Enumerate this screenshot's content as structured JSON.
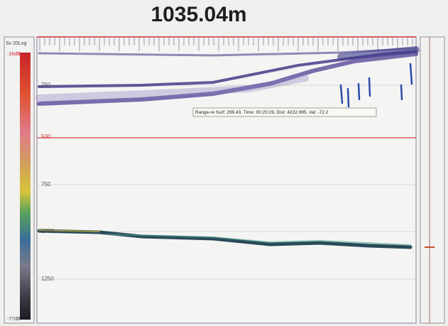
{
  "header": {
    "title": "1035.04m"
  },
  "colorbar": {
    "unit_label": "Sv 20Log",
    "top_label": "-16dB",
    "bottom_label": "-77dB"
  },
  "depth_labels": [
    "250",
    "500",
    "750",
    "1000",
    "1250"
  ],
  "tooltip": {
    "text": "Range-re Surf: 299.43, Time: 00:20:29, Dist: 4222.995, Val: -72.2"
  }
}
